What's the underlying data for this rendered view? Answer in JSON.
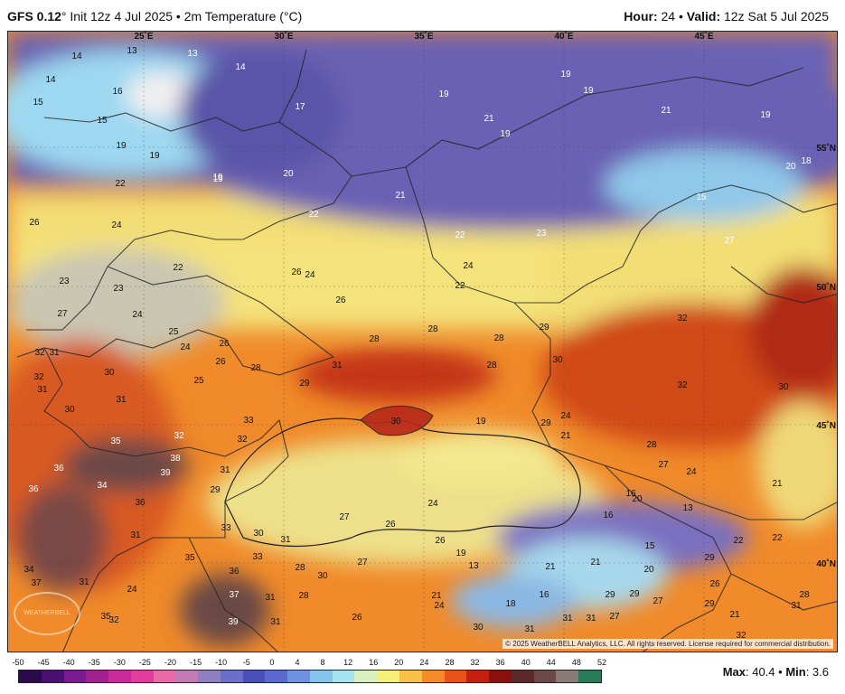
{
  "header": {
    "model": "GFS 0.12",
    "init": "° Init 12z 4 Jul 2025 • 2m Temperature (°C)",
    "hour_label": "Hour:",
    "hour_value": "24",
    "valid_label": "Valid:",
    "valid_value": "12z Sat 5 Jul 2025"
  },
  "map": {
    "copyright": "© 2025 WeatherBELL Analytics, LLC. All rights reserved. License required for commercial distribution.",
    "logo_text": "WEATHERBELL",
    "lon_labels": [
      "25˚E",
      "30˚E",
      "35˚E",
      "40˚E",
      "45˚E"
    ],
    "lat_labels": [
      "55˚N",
      "50˚N",
      "45˚N",
      "40˚N"
    ],
    "temperature_labels": [
      "14",
      "13",
      "13",
      "14",
      "14",
      "16",
      "15",
      "15",
      "19",
      "19",
      "22",
      "26",
      "24",
      "23",
      "23",
      "27",
      "24",
      "22",
      "19",
      "20",
      "19",
      "19",
      "21",
      "19",
      "19",
      "17",
      "19",
      "21",
      "19",
      "20",
      "18",
      "21",
      "22",
      "22",
      "23",
      "24",
      "15",
      "22",
      "27",
      "26",
      "24",
      "26",
      "28",
      "28",
      "28",
      "28",
      "29",
      "30",
      "32",
      "30",
      "31",
      "29",
      "30",
      "32",
      "32",
      "32",
      "31",
      "25",
      "24",
      "25",
      "26",
      "26",
      "28",
      "31",
      "30",
      "31",
      "30",
      "33",
      "32",
      "35",
      "32",
      "38",
      "39",
      "36",
      "36",
      "34",
      "36",
      "31",
      "29",
      "31",
      "33",
      "30",
      "31",
      "33",
      "35",
      "36",
      "37",
      "34",
      "31",
      "37",
      "24",
      "35",
      "32",
      "39",
      "31",
      "28",
      "30",
      "28",
      "27",
      "26",
      "24",
      "26",
      "19",
      "13",
      "21",
      "24",
      "26",
      "30",
      "31",
      "31",
      "31",
      "31",
      "27",
      "27",
      "18",
      "16",
      "21",
      "20",
      "16",
      "13",
      "15",
      "20",
      "21",
      "29",
      "29",
      "29",
      "27",
      "29",
      "26",
      "21",
      "28",
      "31",
      "32",
      "22",
      "22",
      "21",
      "24",
      "27",
      "28",
      "24",
      "29",
      "19",
      "21",
      "16"
    ]
  },
  "legend": {
    "ticks": [
      "-50",
      "-45",
      "-40",
      "-35",
      "-30",
      "-25",
      "-20",
      "-15",
      "-10",
      "-5",
      "0",
      "4",
      "8",
      "12",
      "16",
      "20",
      "24",
      "28",
      "32",
      "36",
      "40",
      "44",
      "48",
      "52"
    ],
    "colors": [
      "#2a0a4a",
      "#4a1070",
      "#7a1a90",
      "#a0208f",
      "#c82a9a",
      "#e23c9c",
      "#e86aa8",
      "#c27ab5",
      "#8f7fc0",
      "#6a70c8",
      "#4a4fb8",
      "#5a6ad0",
      "#6f92e0",
      "#86c4ec",
      "#a8e4f0",
      "#d8f0c0",
      "#f5ef7a",
      "#f8c24a",
      "#f58a28",
      "#e85418",
      "#c42010",
      "#8a1010",
      "#5a2a2a",
      "#6a4a48",
      "#8a7a78",
      "#2a7a5a"
    ]
  },
  "footer": {
    "max_label": "Max",
    "max_value": ": 40.4",
    "min_label": "Min",
    "min_value": ": 3.6"
  }
}
